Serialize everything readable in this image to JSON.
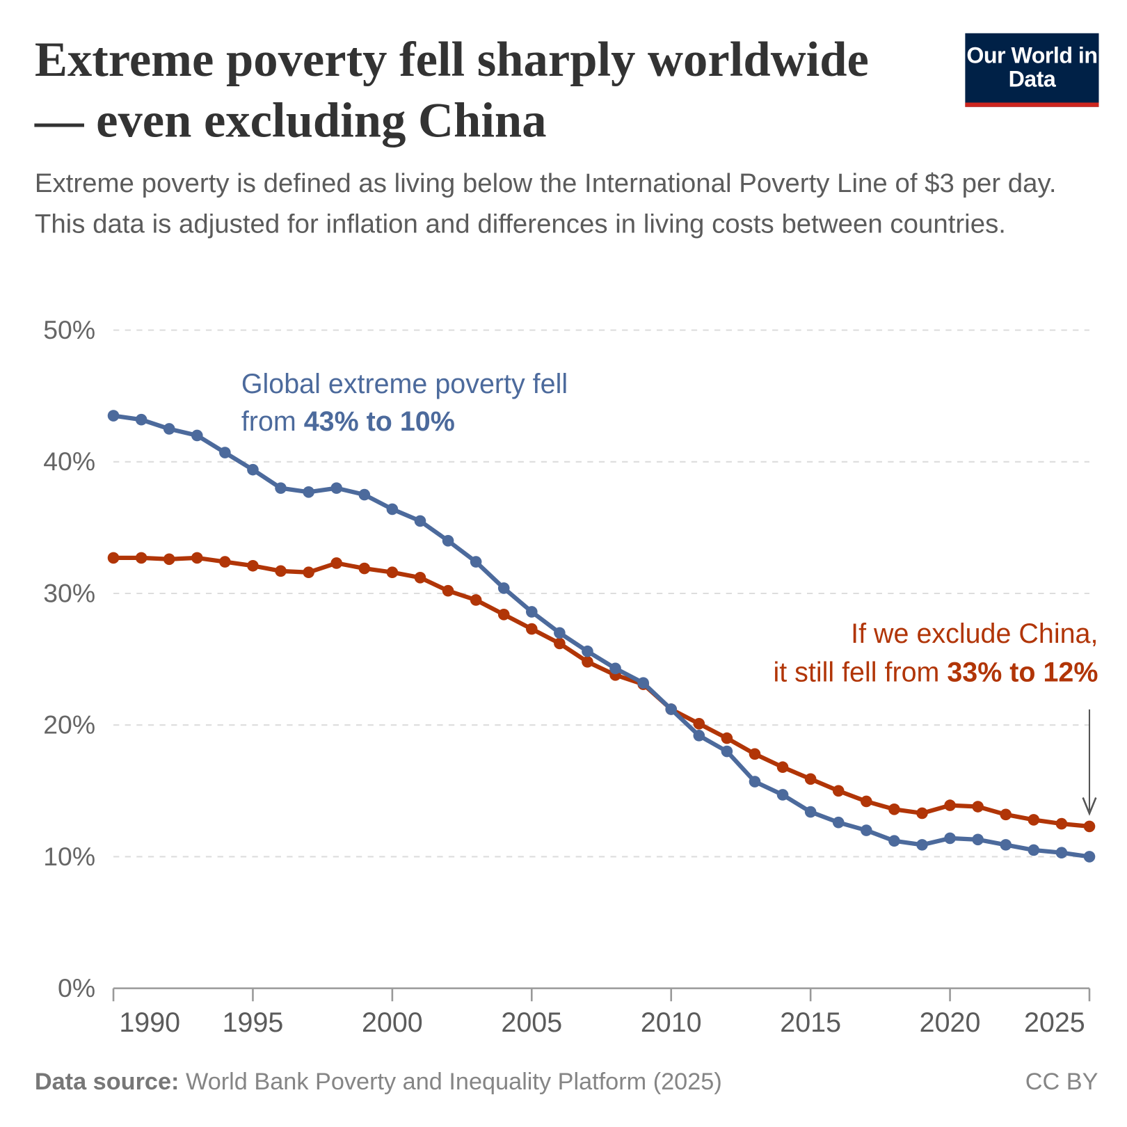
{
  "header": {
    "title": "Extreme poverty fell sharply worldwide — even excluding China",
    "subtitle": "Extreme poverty is defined as living below the International Poverty Line of $3 per day. This data is adjusted for inflation and differences in living costs between countries.",
    "logo": "Our World in Data"
  },
  "footer": {
    "source_label": "Data source:",
    "source": "World Bank Poverty and Inequality Platform (2025)",
    "license": "CC BY"
  },
  "colors": {
    "global": "#4c6a9c",
    "excl_china": "#b13507",
    "logo_bg": "#002147",
    "logo_bar": "#ce261e"
  },
  "chart_data": {
    "type": "line",
    "ylim": [
      0,
      50
    ],
    "xlim": [
      1990,
      2025
    ],
    "yticks": [
      "0%",
      "10%",
      "20%",
      "30%",
      "40%",
      "50%"
    ],
    "xticks": [
      "1990",
      "1995",
      "2000",
      "2005",
      "2010",
      "2015",
      "2020",
      "2025"
    ],
    "grid": "horizontal dashed",
    "x": [
      1990,
      1991,
      1992,
      1993,
      1994,
      1995,
      1996,
      1997,
      1998,
      1999,
      2000,
      2001,
      2002,
      2003,
      2004,
      2005,
      2006,
      2007,
      2008,
      2009,
      2010,
      2011,
      2012,
      2013,
      2014,
      2015,
      2016,
      2017,
      2018,
      2019,
      2020,
      2021,
      2022,
      2023,
      2024,
      2025
    ],
    "series": [
      {
        "key": "global",
        "values": [
          43.5,
          43.2,
          42.5,
          42.0,
          40.7,
          39.4,
          38.0,
          37.7,
          38.0,
          37.5,
          36.4,
          35.5,
          34.0,
          32.4,
          30.4,
          28.6,
          27.0,
          25.6,
          24.3,
          23.2,
          21.2,
          19.2,
          18.0,
          15.7,
          14.7,
          13.4,
          12.6,
          12.0,
          11.2,
          10.9,
          11.4,
          11.3,
          10.9,
          10.5,
          10.3,
          10.0
        ]
      },
      {
        "key": "excl_china",
        "values": [
          32.7,
          32.7,
          32.6,
          32.7,
          32.4,
          32.1,
          31.7,
          31.6,
          32.3,
          31.9,
          31.6,
          31.2,
          30.2,
          29.5,
          28.4,
          27.3,
          26.2,
          24.8,
          23.8,
          23.1,
          21.2,
          20.1,
          19.0,
          17.8,
          16.8,
          15.9,
          15.0,
          14.2,
          13.6,
          13.3,
          13.9,
          13.8,
          13.2,
          12.8,
          12.5,
          12.3
        ]
      }
    ],
    "annotations": {
      "global": {
        "line1": "Global extreme poverty fell",
        "line2_pre": "from ",
        "line2_bold": "43% to 10%"
      },
      "excl_china": {
        "line1": "If we exclude China,",
        "line2_pre": "it still fell from ",
        "line2_bold": "33% to 12%"
      }
    }
  }
}
